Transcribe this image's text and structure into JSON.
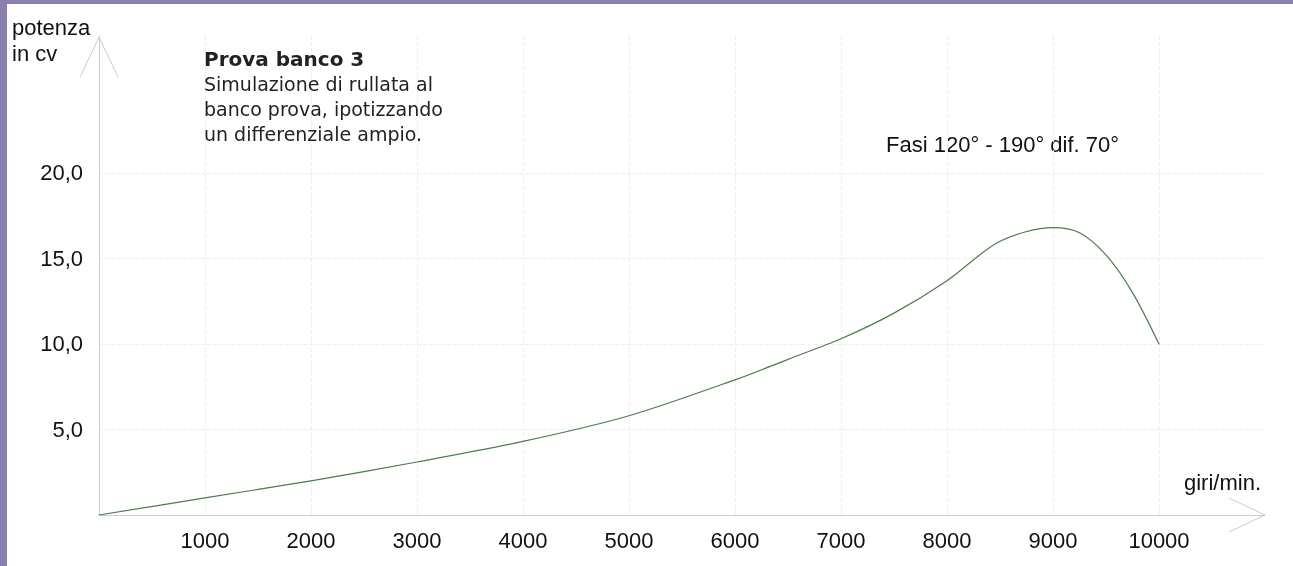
{
  "chart_data": {
    "type": "line",
    "title": "Prova banco 3",
    "subtitle": "Simulazione di rullata al\nbanco prova, ipotizzando\nun differenziale ampio.",
    "xlabel": "giri/min.",
    "ylabel": "potenza in cv",
    "annotations": [
      "Fasi 120° - 190° dif. 70°"
    ],
    "x": [
      0,
      1000,
      2000,
      3000,
      4000,
      5000,
      6000,
      6500,
      7000,
      7500,
      8000,
      8500,
      9000,
      9250,
      9500,
      9750,
      10000
    ],
    "series": [
      {
        "color": "#4d7a4d",
        "values": [
          0,
          1.0,
          2.0,
          3.1,
          4.3,
          5.8,
          7.9,
          9.1,
          10.3,
          11.8,
          13.7,
          16.0,
          16.8,
          16.5,
          15.2,
          13.0,
          10.0
        ]
      }
    ],
    "xlim": [
      0,
      11000
    ],
    "xticks": [
      1000,
      2000,
      3000,
      4000,
      5000,
      6000,
      7000,
      8000,
      9000,
      10000
    ],
    "ylim": [
      0,
      28
    ],
    "yticks": [
      {
        "value": 5,
        "label": "5,0"
      },
      {
        "value": 10,
        "label": "10,0"
      },
      {
        "value": 15,
        "label": "15,0"
      },
      {
        "value": 20,
        "label": "20,0"
      }
    ],
    "grid": true,
    "marker": "none",
    "line_style": "solid"
  }
}
